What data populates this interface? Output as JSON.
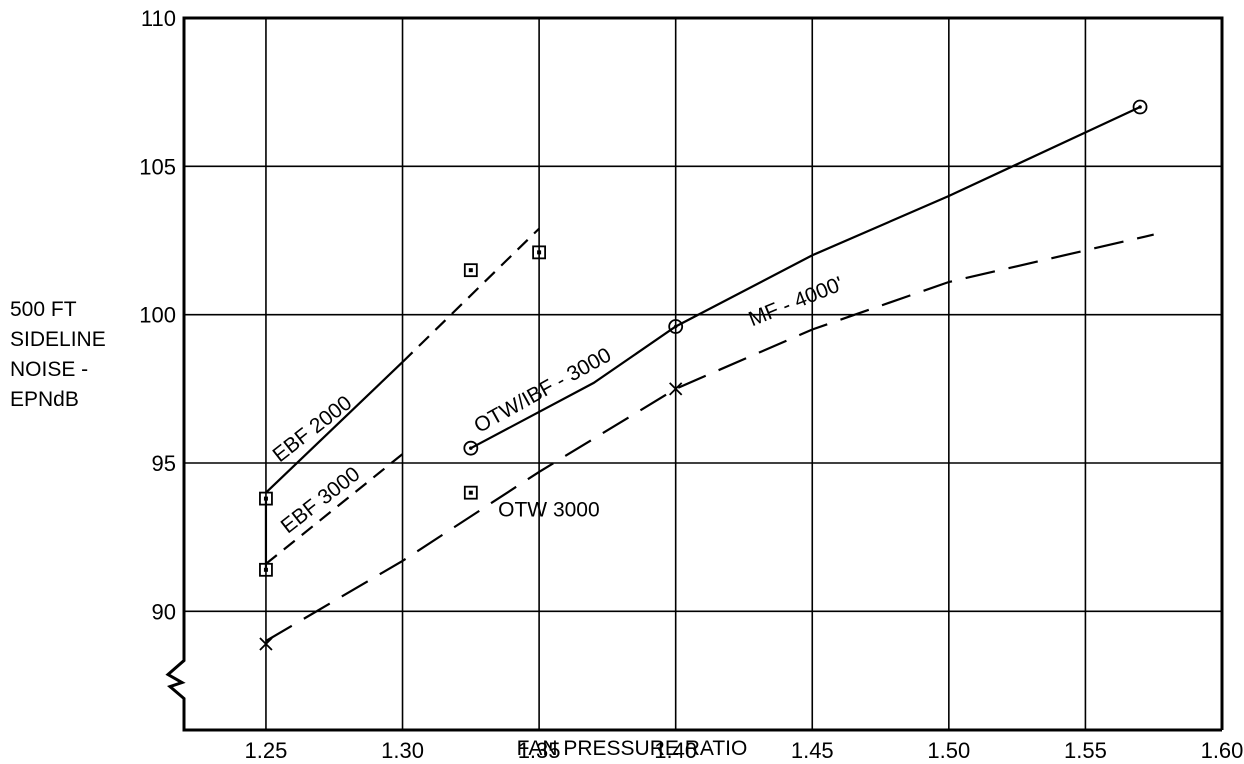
{
  "chart_data": {
    "type": "line",
    "xlabel": "FAN PRESSURE RATIO",
    "ylabel_lines": [
      "500 FT",
      "SIDELINE",
      "NOISE -",
      "EPNdB"
    ],
    "xlim": [
      1.22,
      1.6
    ],
    "ylim": [
      86,
      110
    ],
    "x_ticks": [
      {
        "value": 1.25,
        "label": "1.25"
      },
      {
        "value": 1.3,
        "label": "1.30"
      },
      {
        "value": 1.35,
        "label": "1.35"
      },
      {
        "value": 1.4,
        "label": "1.40"
      },
      {
        "value": 1.45,
        "label": "1.45"
      },
      {
        "value": 1.5,
        "label": "1.50"
      },
      {
        "value": 1.55,
        "label": "1.55"
      },
      {
        "value": 1.6,
        "label": "1.60"
      }
    ],
    "y_ticks": [
      {
        "value": 90,
        "label": "90"
      },
      {
        "value": 95,
        "label": "95"
      },
      {
        "value": 100,
        "label": "100"
      },
      {
        "value": 105,
        "label": "105"
      },
      {
        "value": 110,
        "label": "110"
      }
    ],
    "grid": true,
    "series": [
      {
        "name": "EBF 2000",
        "line_style": "solid-then-dashed",
        "curve": [
          [
            1.25,
            94.0
          ],
          [
            1.3,
            98.4
          ],
          [
            1.35,
            102.9
          ]
        ],
        "marker": "square",
        "points": [
          [
            1.25,
            93.8
          ],
          [
            1.325,
            101.5
          ],
          [
            1.35,
            102.1
          ]
        ]
      },
      {
        "name": "EBF 3000",
        "line_style": "dashed",
        "curve": [
          [
            1.25,
            91.6
          ],
          [
            1.3,
            95.3
          ]
        ],
        "marker": "square",
        "points": [
          [
            1.25,
            91.4
          ]
        ]
      },
      {
        "name": "OTW/IBF - 3000",
        "line_style": "solid",
        "curve": [
          [
            1.325,
            95.5
          ],
          [
            1.37,
            97.7
          ],
          [
            1.4,
            99.6
          ],
          [
            1.45,
            102.0
          ],
          [
            1.5,
            104.0
          ],
          [
            1.57,
            107.0
          ]
        ],
        "marker": "circle",
        "points": [
          [
            1.325,
            95.5
          ],
          [
            1.4,
            99.6
          ],
          [
            1.57,
            107.0
          ]
        ]
      },
      {
        "name": "OTW 3000",
        "line_style": "none",
        "marker": "square",
        "points": [
          [
            1.325,
            94.0
          ]
        ]
      },
      {
        "name": "MF - 4000'",
        "line_style": "long-dash",
        "curve": [
          [
            1.25,
            89.0
          ],
          [
            1.3,
            91.7
          ],
          [
            1.35,
            94.7
          ],
          [
            1.4,
            97.5
          ],
          [
            1.45,
            99.5
          ],
          [
            1.5,
            101.1
          ],
          [
            1.575,
            102.7
          ]
        ],
        "marker": "x",
        "points": [
          [
            1.25,
            88.9
          ],
          [
            1.4,
            97.5
          ]
        ]
      }
    ]
  }
}
